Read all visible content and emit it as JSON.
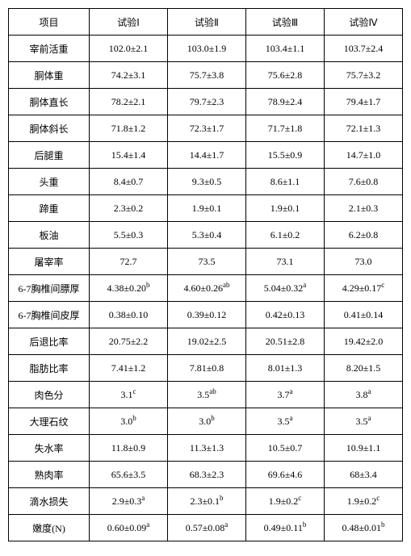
{
  "table": {
    "type": "table",
    "columns": [
      "项目",
      "试验Ⅰ",
      "试验Ⅱ",
      "试验Ⅲ",
      "试验Ⅳ"
    ],
    "rows": [
      [
        "宰前活重",
        "102.0±2.1",
        "103.0±1.9",
        "103.4±1.1",
        "103.7±2.4"
      ],
      [
        "胴体重",
        "74.2±3.1",
        "75.7±3.8",
        "75.6±2.8",
        "75.7±3.2"
      ],
      [
        "胴体直长",
        "78.2±2.1",
        "79.7±2.3",
        "78.9±2.4",
        "79.4±1.7"
      ],
      [
        "胴体斜长",
        "71.8±1.2",
        "72.3±1.7",
        "71.7±1.8",
        "72.1±1.3"
      ],
      [
        "后腿重",
        "15.4±1.4",
        "14.4±1.7",
        "15.5±0.9",
        "14.7±1.0"
      ],
      [
        "头重",
        "8.4±0.7",
        "9.3±0.5",
        "8.6±1.1",
        "7.6±0.8"
      ],
      [
        "蹄重",
        "2.3±0.2",
        "1.9±0.1",
        "1.9±0.1",
        "2.1±0.3"
      ],
      [
        "板油",
        "5.5±0.3",
        "5.3±0.4",
        "6.1±0.2",
        "6.2±0.8"
      ],
      [
        "屠宰率",
        "72.7",
        "73.5",
        "73.1",
        "73.0"
      ],
      [
        "6-7胸椎间膘厚",
        "4.38±0.20",
        "4.60±0.26",
        "5.04±0.32",
        "4.29±0.17"
      ],
      [
        "6-7胸椎间皮厚",
        "0.38±0.10",
        "0.39±0.12",
        "0.42±0.13",
        "0.41±0.14"
      ],
      [
        "后退比率",
        "20.75±2.2",
        "19.02±2.5",
        "20.51±2.8",
        "19.42±2.0"
      ],
      [
        "脂肪比率",
        "7.41±1.2",
        "7.81±0.8",
        "8.01±1.3",
        "8.20±1.5"
      ],
      [
        "肉色分",
        "3.1",
        "3.5",
        "3.7",
        "3.8"
      ],
      [
        "大理石纹",
        "3.0",
        "3.0",
        "3.5",
        "3.5"
      ],
      [
        "失水率",
        "11.8±0.9",
        "11.3±1.3",
        "10.5±0.7",
        "10.9±1.1"
      ],
      [
        "熟肉率",
        "65.6±3.5",
        "68.3±2.3",
        "69.6±4.6",
        "68±3.4"
      ],
      [
        "滴水损失",
        "2.9±0.3",
        "2.3±0.1",
        "1.9±0.2",
        "1.9±0.2"
      ],
      [
        "嫩度(N)",
        "0.60±0.09",
        "0.57±0.08",
        "0.49±0.11",
        "0.48±0.01"
      ]
    ],
    "superscripts": {
      "9": [
        "b",
        "ab",
        "a",
        "c"
      ],
      "13": [
        "c",
        "ab",
        "a",
        "a"
      ],
      "14": [
        "b",
        "b",
        "a",
        "a"
      ],
      "17": [
        "a",
        "b",
        "c",
        "c"
      ],
      "18": [
        "a",
        "a",
        "b",
        "b"
      ]
    },
    "border_color": "#000000",
    "background_color": "#ffffff",
    "font_size": 12,
    "cell_align": "center"
  }
}
